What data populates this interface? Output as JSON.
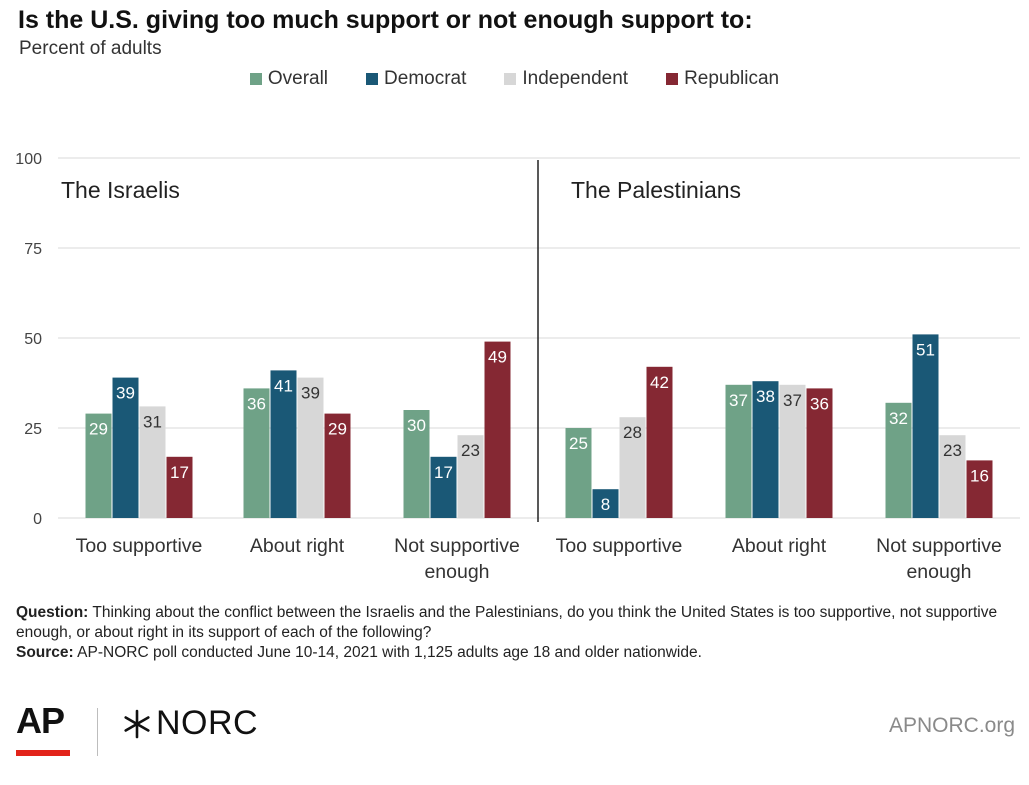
{
  "chart_data": {
    "type": "bar",
    "title": "Is the U.S. giving too much support or not enough support to:",
    "subtitle": "Percent of adults",
    "ylim": [
      0,
      100
    ],
    "yticks": [
      0,
      25,
      50,
      75,
      100
    ],
    "grid": true,
    "legend_position": "top-center",
    "series": [
      {
        "name": "Overall",
        "color": "#6fa287"
      },
      {
        "name": "Democrat",
        "color": "#1a5876"
      },
      {
        "name": "Independent",
        "color": "#d7d7d7"
      },
      {
        "name": "Republican",
        "color": "#852833"
      }
    ],
    "panels": [
      {
        "title": "The Israelis",
        "categories": [
          [
            "Too supportive"
          ],
          [
            "About right"
          ],
          [
            "Not supportive",
            "enough"
          ]
        ],
        "values": [
          [
            29,
            39,
            31,
            17
          ],
          [
            36,
            41,
            39,
            29
          ],
          [
            30,
            17,
            23,
            49
          ]
        ]
      },
      {
        "title": "The Palestinians",
        "categories": [
          [
            "Too supportive"
          ],
          [
            "About right"
          ],
          [
            "Not supportive",
            "enough"
          ]
        ],
        "values": [
          [
            25,
            8,
            28,
            42
          ],
          [
            37,
            38,
            37,
            36
          ],
          [
            32,
            51,
            23,
            16
          ]
        ]
      }
    ]
  },
  "footnote": {
    "question_label": "Question:",
    "question_text": "Thinking about the conflict between the Israelis and the Palestinians, do you think the United States is too supportive, not supportive enough, or about right in its support of each of the following?",
    "source_label": "Source:",
    "source_text": "AP-NORC poll conducted June 10-14, 2021 with 1,125 adults age 18 and older nationwide."
  },
  "footer": {
    "ap_logo": "AP",
    "norc_logo": "NORC",
    "url": "APNORC.org"
  }
}
